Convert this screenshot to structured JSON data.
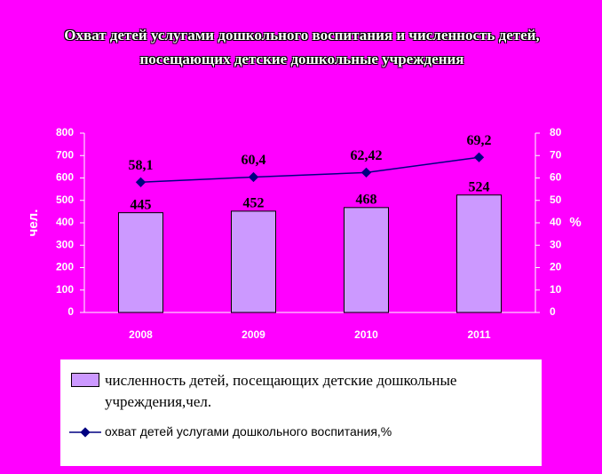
{
  "chart_data": {
    "type": "bar",
    "title": "Охват детей услугами дошкольного воспитания и численность детей, посещающих детские дошкольные учреждения",
    "background": "#ff00ff",
    "categories": [
      "2008",
      "2009",
      "2010",
      "2011"
    ],
    "series": [
      {
        "name": "численность детей, посещающих детские дошкольные учреждения,чел.",
        "type": "bar",
        "color": "#cc99ff",
        "values": [
          445,
          452,
          468,
          524
        ]
      },
      {
        "name": "охват  детей услугами дошкольного воспитания,%",
        "type": "line",
        "axis": "y2",
        "color": "#000080",
        "values": [
          58.1,
          60.4,
          62.42,
          69.2
        ],
        "value_labels": [
          "58,1",
          "60,4",
          "62,42",
          "69,2"
        ]
      }
    ],
    "ylabel": "чел.",
    "y2label": "%",
    "ylim": [
      0,
      800
    ],
    "yticks": [
      0,
      100,
      200,
      300,
      400,
      500,
      600,
      700,
      800
    ],
    "y2lim": [
      0,
      80
    ],
    "y2ticks": [
      0,
      10,
      20,
      30,
      40,
      50,
      60,
      70,
      80
    ],
    "legend": "bottom"
  }
}
